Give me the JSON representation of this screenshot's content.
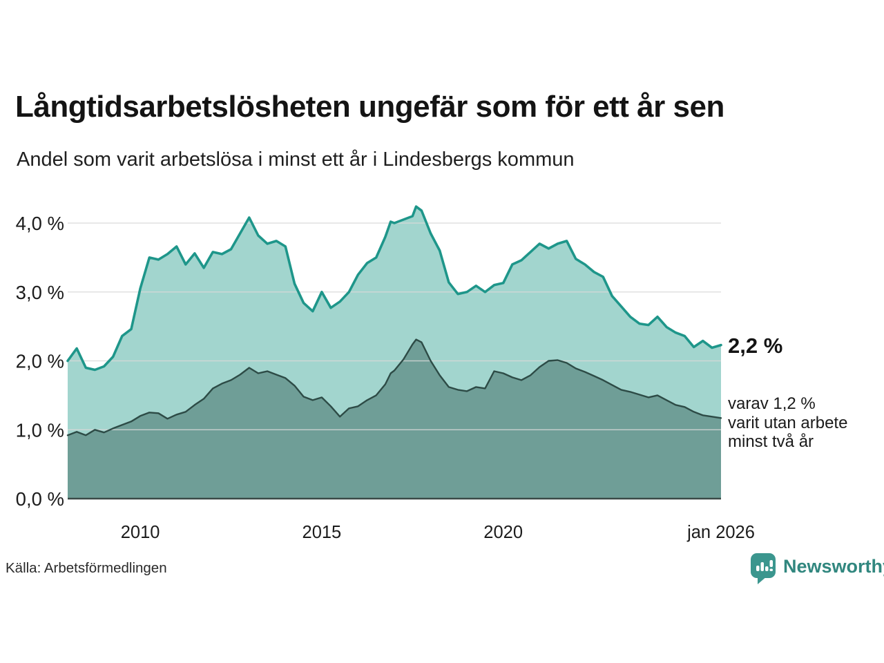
{
  "header": {
    "title": "Långtidsarbetslösheten ungefär som för ett år sen",
    "subtitle": "Andel som varit arbetslösa i minst ett år i Lindesbergs kommun"
  },
  "annotations": {
    "latest_total": "2,2 %",
    "secondary": "varav 1,2 %\nvarit utan arbete\nminst två år"
  },
  "footer": {
    "source": "Källa: Arbetsförmedlingen",
    "logo_text": "Newsworthy",
    "logo_icon": "speech-bubble-bar-chart-icon"
  },
  "colors": {
    "teal_line": "#1e968a",
    "light_fill": "#a2d5ce",
    "dark_fill": "#6f9e97",
    "dark_line": "#2d4b46",
    "grid": "#d9d9d9",
    "axis": "#3a4a47",
    "tick_text": "#1c1c1c",
    "logo_teal": "#3b968e"
  },
  "chart_data": {
    "type": "area",
    "title": "Långtidsarbetslösheten ungefär som för ett år sen",
    "subtitle": "Andel som varit arbetslösa i minst ett år i Lindesbergs kommun",
    "xlabel": "",
    "ylabel": "",
    "grid": true,
    "legend_position": "none",
    "xlim": [
      2008,
      2026
    ],
    "ylim": [
      0,
      4.3
    ],
    "yticks": [
      {
        "v": 0,
        "label": "0,0 %"
      },
      {
        "v": 1,
        "label": "1,0 %"
      },
      {
        "v": 2,
        "label": "2,0 %"
      },
      {
        "v": 3,
        "label": "3,0 %"
      },
      {
        "v": 4,
        "label": "4,0 %"
      }
    ],
    "xticks": [
      {
        "v": 2010,
        "label": "2010"
      },
      {
        "v": 2015,
        "label": "2015"
      },
      {
        "v": 2020,
        "label": "2020"
      },
      {
        "v": 2026,
        "label": "jan 2026"
      }
    ],
    "x": [
      2008,
      2008.25,
      2008.5,
      2008.75,
      2009,
      2009.25,
      2009.5,
      2009.75,
      2010,
      2010.25,
      2010.5,
      2010.75,
      2011,
      2011.25,
      2011.5,
      2011.75,
      2012,
      2012.25,
      2012.5,
      2012.75,
      2013,
      2013.25,
      2013.5,
      2013.75,
      2014,
      2014.25,
      2014.5,
      2014.75,
      2015,
      2015.25,
      2015.5,
      2015.75,
      2016,
      2016.25,
      2016.5,
      2016.75,
      2016.9,
      2017,
      2017.25,
      2017.5,
      2017.6,
      2017.75,
      2018,
      2018.25,
      2018.5,
      2018.75,
      2019,
      2019.25,
      2019.5,
      2019.75,
      2020,
      2020.25,
      2020.5,
      2020.75,
      2021,
      2021.25,
      2021.5,
      2021.75,
      2022,
      2022.25,
      2022.5,
      2022.75,
      2023,
      2023.25,
      2023.5,
      2023.75,
      2024,
      2024.25,
      2024.5,
      2024.75,
      2025,
      2025.25,
      2025.5,
      2025.75,
      2026
    ],
    "series": [
      {
        "name": "Andel som varit arbetslösa i minst ett år",
        "end_label": "2,2 %",
        "values": [
          2.0,
          2.18,
          1.9,
          1.87,
          1.92,
          2.06,
          2.36,
          2.46,
          3.05,
          3.5,
          3.47,
          3.55,
          3.66,
          3.4,
          3.56,
          3.35,
          3.58,
          3.55,
          3.62,
          3.85,
          4.08,
          3.82,
          3.7,
          3.74,
          3.66,
          3.12,
          2.84,
          2.72,
          3.0,
          2.77,
          2.86,
          3.0,
          3.25,
          3.42,
          3.5,
          3.8,
          4.02,
          4.0,
          4.05,
          4.1,
          4.24,
          4.18,
          3.85,
          3.6,
          3.14,
          2.97,
          3.0,
          3.09,
          3.0,
          3.1,
          3.13,
          3.4,
          3.46,
          3.58,
          3.7,
          3.63,
          3.7,
          3.74,
          3.48,
          3.4,
          3.29,
          3.22,
          2.94,
          2.79,
          2.64,
          2.54,
          2.52,
          2.64,
          2.49,
          2.41,
          2.36,
          2.2,
          2.29,
          2.19,
          2.23
        ]
      },
      {
        "name": "varav utan arbete minst två år",
        "end_label": "1,2 %",
        "values": [
          0.92,
          0.97,
          0.92,
          1.0,
          0.96,
          1.02,
          1.07,
          1.12,
          1.2,
          1.25,
          1.24,
          1.16,
          1.22,
          1.26,
          1.36,
          1.45,
          1.6,
          1.67,
          1.72,
          1.8,
          1.9,
          1.82,
          1.85,
          1.8,
          1.75,
          1.64,
          1.48,
          1.43,
          1.47,
          1.34,
          1.19,
          1.31,
          1.34,
          1.43,
          1.5,
          1.66,
          1.82,
          1.86,
          2.02,
          2.24,
          2.31,
          2.27,
          2.0,
          1.79,
          1.62,
          1.58,
          1.56,
          1.62,
          1.6,
          1.85,
          1.82,
          1.76,
          1.72,
          1.79,
          1.91,
          2.0,
          2.01,
          1.97,
          1.89,
          1.84,
          1.78,
          1.72,
          1.65,
          1.58,
          1.55,
          1.51,
          1.47,
          1.5,
          1.43,
          1.36,
          1.33,
          1.26,
          1.21,
          1.19,
          1.17
        ]
      }
    ]
  }
}
